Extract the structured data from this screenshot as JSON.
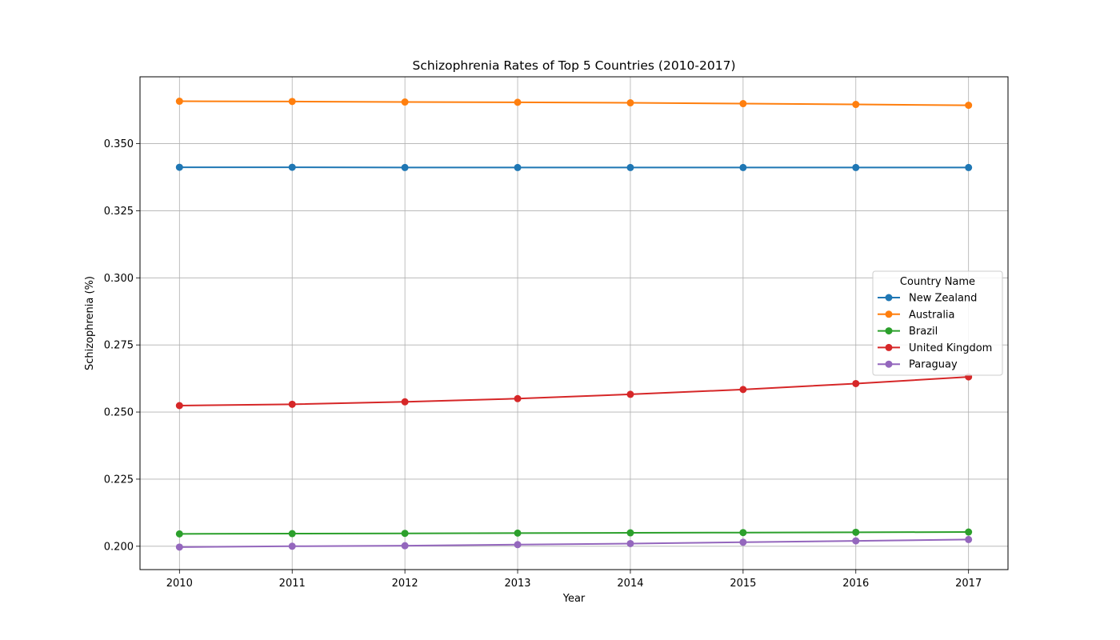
{
  "chart_data": {
    "type": "line",
    "title": "Schizophrenia Rates of Top 5 Countries (2010-2017)",
    "xlabel": "Year",
    "ylabel": "Schizophrenia (%)",
    "x": [
      2010,
      2011,
      2012,
      2013,
      2014,
      2015,
      2016,
      2017
    ],
    "x_tick_labels": [
      "2010",
      "2011",
      "2012",
      "2013",
      "2014",
      "2015",
      "2016",
      "2017"
    ],
    "xlim": [
      2009.65,
      2017.35
    ],
    "ylim": [
      0.1913,
      0.3749
    ],
    "y_ticks": [
      0.2,
      0.225,
      0.25,
      0.275,
      0.3,
      0.325,
      0.35
    ],
    "y_tick_labels": [
      "0.200",
      "0.225",
      "0.250",
      "0.275",
      "0.300",
      "0.325",
      "0.350"
    ],
    "grid": true,
    "legend": {
      "title": "Country Name",
      "position": "center-right"
    },
    "series": [
      {
        "name": "New Zealand",
        "color": "#1f77b4",
        "values": [
          0.3412,
          0.3412,
          0.3411,
          0.3411,
          0.3411,
          0.3411,
          0.3411,
          0.3411
        ]
      },
      {
        "name": "Australia",
        "color": "#ff7f0e",
        "values": [
          0.3658,
          0.3657,
          0.3655,
          0.3654,
          0.3652,
          0.3649,
          0.3646,
          0.3643
        ]
      },
      {
        "name": "Brazil",
        "color": "#2ca02c",
        "values": [
          0.2046,
          0.2047,
          0.2048,
          0.2049,
          0.205,
          0.2051,
          0.2052,
          0.2053
        ]
      },
      {
        "name": "United Kingdom",
        "color": "#d62728",
        "values": [
          0.2524,
          0.2529,
          0.2538,
          0.255,
          0.2566,
          0.2584,
          0.2606,
          0.2631
        ]
      },
      {
        "name": "Paraguay",
        "color": "#9467bd",
        "values": [
          0.1997,
          0.2,
          0.2002,
          0.2006,
          0.201,
          0.2015,
          0.202,
          0.2025
        ]
      }
    ]
  }
}
